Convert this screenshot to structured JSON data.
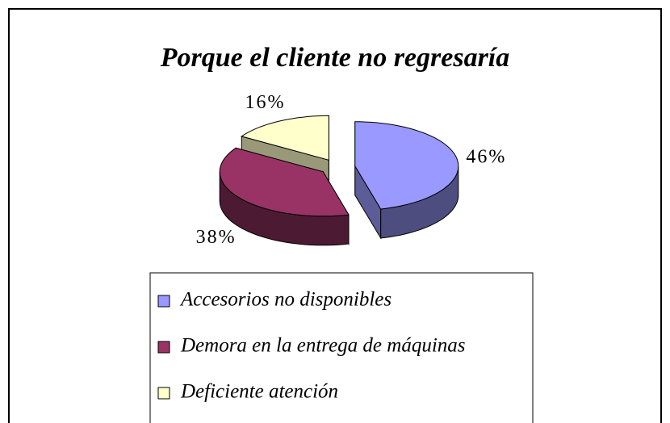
{
  "chart_data": {
    "type": "pie",
    "title": "Porque el cliente no regresaría",
    "categories": [
      "Accesorios no disponibles",
      "Demora en la entrega de máquinas",
      "Deficiente atención"
    ],
    "values": [
      46,
      38,
      16
    ],
    "value_labels": [
      "46%",
      "38%",
      "16%"
    ],
    "colors": [
      "#9999ff",
      "#993366",
      "#ffffcc"
    ],
    "legend": "bottom"
  }
}
